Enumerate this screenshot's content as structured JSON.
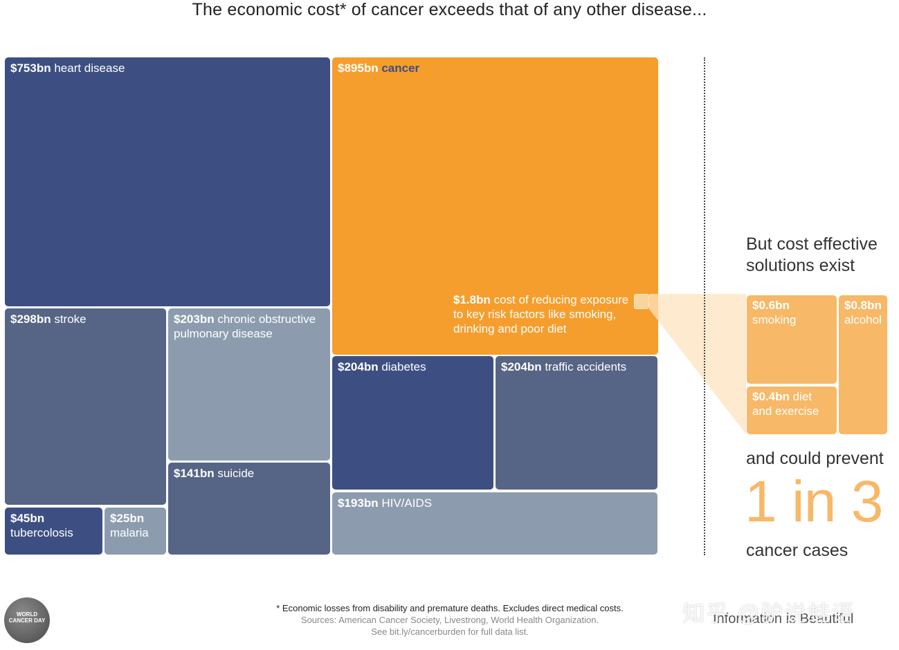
{
  "title": "The economic cost* of cancer exceeds that of any other disease...",
  "chart_data": {
    "type": "treemap",
    "unit": "$bn",
    "items": [
      {
        "value_label": "$753bn",
        "name": "heart disease",
        "value": 753
      },
      {
        "value_label": "$895bn",
        "name": "cancer",
        "value": 895
      },
      {
        "value_label": "$298bn",
        "name": "stroke",
        "value": 298
      },
      {
        "value_label": "$203bn",
        "name": "chronic obstructive pulmonary disease",
        "value": 203
      },
      {
        "value_label": "$204bn",
        "name": "diabetes",
        "value": 204
      },
      {
        "value_label": "$204bn",
        "name": "traffic accidents",
        "value": 204
      },
      {
        "value_label": "$141bn",
        "name": "suicide",
        "value": 141
      },
      {
        "value_label": "$193bn",
        "name": "HIV/AIDS",
        "value": 193
      },
      {
        "value_label": "$45bn",
        "name": "tubercolosis",
        "value": 45
      },
      {
        "value_label": "$25bn",
        "name": "malaria",
        "value": 25
      }
    ],
    "callout": {
      "value_label": "$1.8bn",
      "text": "cost of reducing exposure to key risk factors like smoking, drinking and poor diet",
      "value": 1.8
    },
    "solutions": [
      {
        "value_label": "$0.6bn",
        "name": "smoking",
        "value": 0.6
      },
      {
        "value_label": "$0.8bn",
        "name": "alcohol",
        "value": 0.8
      },
      {
        "value_label": "$0.4bn",
        "name": "diet and exercise",
        "value": 0.4
      }
    ],
    "colors": {
      "dark_blue": "#3d4f82",
      "mid_blue": "#566585",
      "light_blue": "#8c9cae",
      "orange": "#f59e2d",
      "light_orange": "#f7b867"
    }
  },
  "side": {
    "heading": "But cost effective solutions exist",
    "prevent": "and could prevent",
    "big": "1 in 3",
    "cases": "cancer cases"
  },
  "footer": {
    "note": "* Economic losses from disability and premature deaths. Excludes direct medical costs.",
    "sources": "Sources: American Cancer Society, Livestrong, World Health Organization.",
    "link": "See bit.ly/cancerburden for full data list.",
    "brand": "Information is Beautiful",
    "logo": "WORLD CANCER DAY",
    "watermark": "知乎 @驴说蛙语"
  }
}
